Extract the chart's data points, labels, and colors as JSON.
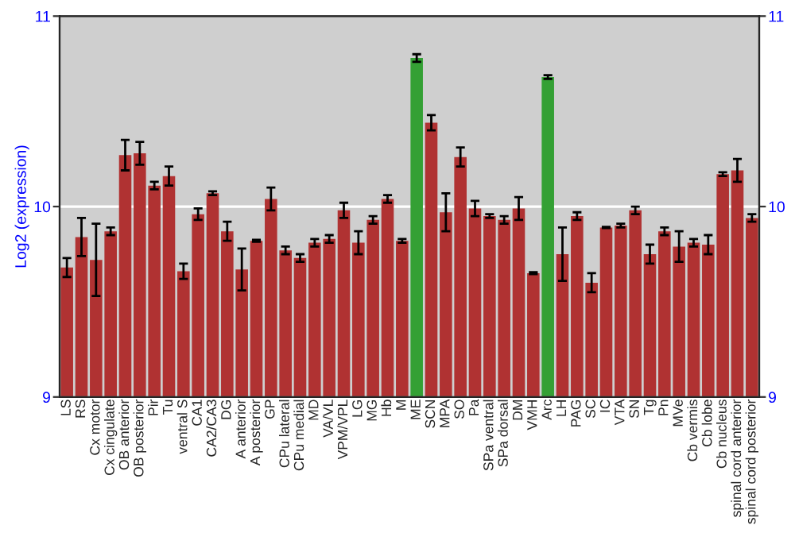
{
  "chart_data": {
    "type": "bar",
    "ylabel": "Log2 (expression)",
    "categories": [
      "LS",
      "RS",
      "Cx motor",
      "Cx cingulate",
      "OB anterior",
      "OB posterior",
      "Pir",
      "Tu",
      "ventral S",
      "CA1",
      "CA2/CA3",
      "DG",
      "A anterior",
      "A posterior",
      "GP",
      "CPu lateral",
      "CPu medial",
      "MD",
      "VA/VL",
      "VPM/VPL",
      "LG",
      "MG",
      "Hb",
      "M",
      "ME",
      "SCN",
      "MPA",
      "SO",
      "Pa",
      "SPa ventral",
      "SPa dorsal",
      "DM",
      "VMH",
      "Arc",
      "LH",
      "PAG",
      "SC",
      "IC",
      "VTA",
      "SN",
      "Tg",
      "Pn",
      "MVe",
      "Cb vermis",
      "Cb lobe",
      "Cb nucleus",
      "spinal cord anterior",
      "spinal cord posterior"
    ],
    "values": [
      9.68,
      9.84,
      9.72,
      9.87,
      10.27,
      10.28,
      10.11,
      10.16,
      9.66,
      9.96,
      10.07,
      9.87,
      9.67,
      9.82,
      10.04,
      9.77,
      9.73,
      9.81,
      9.83,
      9.98,
      9.81,
      9.93,
      10.04,
      9.82,
      10.78,
      10.44,
      9.97,
      10.26,
      9.99,
      9.95,
      9.93,
      9.99,
      9.65,
      10.68,
      9.75,
      9.95,
      9.6,
      9.89,
      9.9,
      9.98,
      9.75,
      9.87,
      9.79,
      9.81,
      9.8,
      10.17,
      10.19,
      9.94
    ],
    "errors": [
      0.05,
      0.1,
      0.19,
      0.02,
      0.08,
      0.06,
      0.02,
      0.05,
      0.04,
      0.03,
      0.01,
      0.05,
      0.11,
      0.005,
      0.06,
      0.02,
      0.02,
      0.02,
      0.02,
      0.04,
      0.06,
      0.02,
      0.02,
      0.01,
      0.02,
      0.04,
      0.1,
      0.05,
      0.04,
      0.01,
      0.02,
      0.06,
      0.005,
      0.01,
      0.14,
      0.02,
      0.05,
      0.003,
      0.01,
      0.02,
      0.05,
      0.02,
      0.08,
      0.02,
      0.05,
      0.01,
      0.06,
      0.02
    ],
    "colors": [
      "#b03232",
      "#b03232",
      "#b03232",
      "#b03232",
      "#b03232",
      "#b03232",
      "#b03232",
      "#b03232",
      "#b03232",
      "#b03232",
      "#b03232",
      "#b03232",
      "#b03232",
      "#b03232",
      "#b03232",
      "#b03232",
      "#b03232",
      "#b03232",
      "#b03232",
      "#b03232",
      "#b03232",
      "#b03232",
      "#b03232",
      "#b03232",
      "#34a034",
      "#b03232",
      "#b03232",
      "#b03232",
      "#b03232",
      "#b03232",
      "#b03232",
      "#b03232",
      "#b03232",
      "#34a034",
      "#b03232",
      "#b03232",
      "#b03232",
      "#b03232",
      "#b03232",
      "#b03232",
      "#b03232",
      "#b03232",
      "#b03232",
      "#b03232",
      "#b03232",
      "#b03232",
      "#b03232",
      "#b03232"
    ],
    "ylim": [
      9,
      11
    ],
    "yticks": [
      9,
      10,
      11
    ],
    "y2lim": [
      9,
      11
    ],
    "y2ticks": [
      9,
      10,
      11
    ],
    "grid": "y"
  }
}
